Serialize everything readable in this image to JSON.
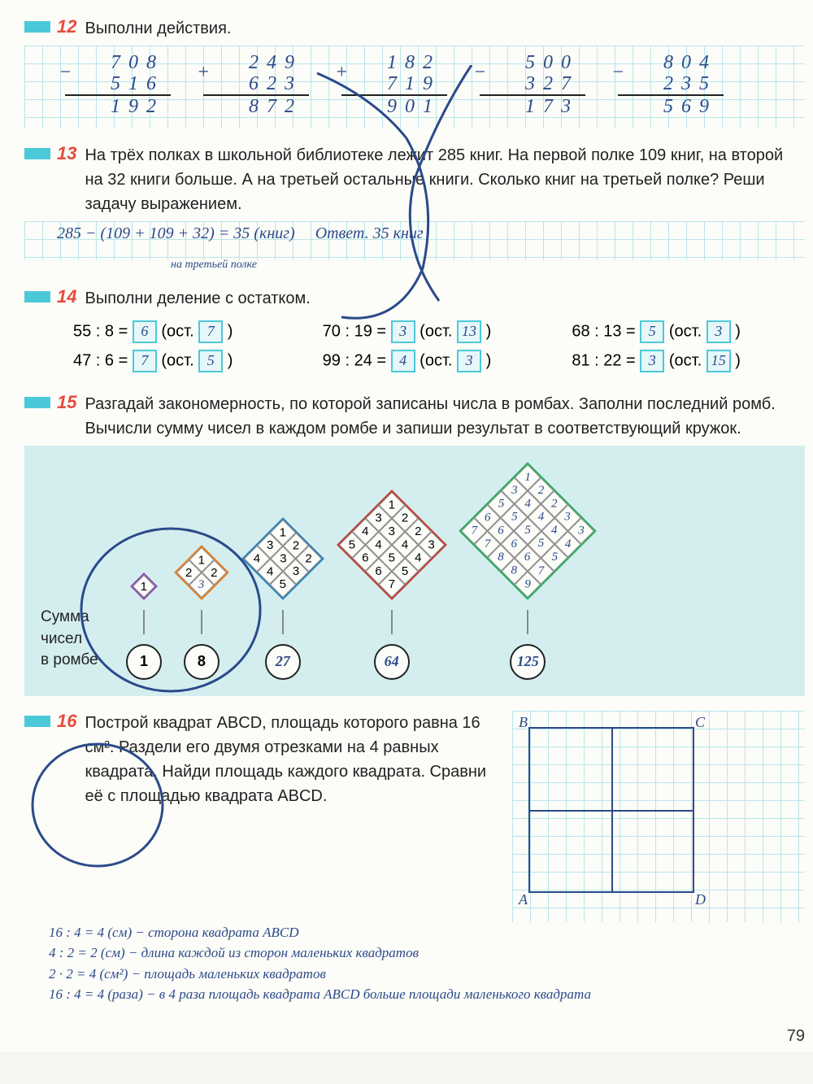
{
  "page_number": "79",
  "colors": {
    "accent_bar": "#4cc9d9",
    "ex_num": "#e74c3c",
    "handwriting": "#2b4a8a",
    "grid": "#b8e6ec",
    "panel_bg": "#d4eef0",
    "page_bg": "#fcfcf8"
  },
  "ex12": {
    "num": "12",
    "title": "Выполни действия.",
    "cols": [
      {
        "sign": "−",
        "a": "708",
        "b": "516",
        "r": "192"
      },
      {
        "sign": "+",
        "a": "249",
        "b": "623",
        "r": "872"
      },
      {
        "sign": "+",
        "a": "182",
        "b": "719",
        "r": "901"
      },
      {
        "sign": "−",
        "a": "500",
        "b": "327",
        "r": "173"
      },
      {
        "sign": "−",
        "a": "804",
        "b": "235",
        "r": "569"
      }
    ]
  },
  "ex13": {
    "num": "13",
    "text": "На трёх полках в школьной библиотеке лежит 285 книг. На первой полке 109 книг, на второй на 32 книги больше. А на третьей остальные книги. Сколько книг на третьей полке? Реши задачу выражением.",
    "answer_expr": "285 − (109 + 109 + 32) = 35 (книг)",
    "answer_note": "на третьей полке",
    "answer_word": "Ответ.",
    "answer_final": "35 книг"
  },
  "ex14": {
    "num": "14",
    "title": "Выполни деление с остатком.",
    "ost": "ост.",
    "items": [
      {
        "expr": "55 : 8 =",
        "q": "6",
        "r": "7"
      },
      {
        "expr": "70 : 19 =",
        "q": "3",
        "r": "13"
      },
      {
        "expr": "68 : 13 =",
        "q": "5",
        "r": "3"
      },
      {
        "expr": "47 : 6 =",
        "q": "7",
        "r": "5"
      },
      {
        "expr": "99 : 24 =",
        "q": "4",
        "r": "3"
      },
      {
        "expr": "81 : 22 =",
        "q": "3",
        "r": "15"
      }
    ]
  },
  "ex15": {
    "num": "15",
    "text": "Разгадай закономерность, по которой записаны числа в ромбах. Заполни последний ромб. Вычисли сумму чисел в каждом ромбе и запиши результат в соответствующий кружок.",
    "sum_label_l1": "Сумма",
    "sum_label_l2": "чисел",
    "sum_label_l3": "в ромбе",
    "rhombi": [
      {
        "size": 1,
        "border": "#8a4db0",
        "cells": [
          "1"
        ],
        "hw": [
          false
        ],
        "sum": "1"
      },
      {
        "size": 2,
        "border": "#e67e22",
        "cells": [
          "1",
          "2",
          "2",
          "3"
        ],
        "hw": [
          false,
          false,
          false,
          true
        ],
        "sum": "8"
      },
      {
        "size": 3,
        "border": "#2980b9",
        "cells": [
          "1",
          "2",
          "2",
          "3",
          "3",
          "3",
          "4",
          "4",
          "5"
        ],
        "hw": [
          false,
          false,
          false,
          false,
          false,
          false,
          false,
          false,
          false
        ],
        "sum": "27"
      },
      {
        "size": 4,
        "border": "#c0392b",
        "cells": [
          "1",
          "2",
          "2",
          "3",
          "3",
          "3",
          "4",
          "4",
          "4",
          "4",
          "5",
          "5",
          "5",
          "6",
          "6",
          "7"
        ],
        "hw": [
          false,
          false,
          false,
          false,
          false,
          false,
          false,
          false,
          false,
          false,
          false,
          false,
          false,
          false,
          false,
          false
        ],
        "sum": "64"
      },
      {
        "size": 5,
        "border": "#27ae60",
        "cells": [
          "1",
          "2",
          "2",
          "3",
          "3",
          "3",
          "4",
          "4",
          "4",
          "4",
          "5",
          "5",
          "5",
          "5",
          "5",
          "6",
          "6",
          "6",
          "6",
          "7",
          "7",
          "7",
          "8",
          "8",
          "9"
        ],
        "hw": [
          true,
          true,
          true,
          true,
          true,
          true,
          true,
          true,
          true,
          true,
          true,
          true,
          true,
          true,
          true,
          true,
          true,
          true,
          true,
          true,
          true,
          true,
          true,
          true,
          true
        ],
        "sum": "125"
      }
    ]
  },
  "ex16": {
    "num": "16",
    "text": "Построй квадрат ABCD, площадь которого равна 16 см². Раздели его двумя отрезками на 4 равных квадрата. Найди площадь каждого квадрата. Сравни её с площадью квадрата ABCD.",
    "labels": {
      "A": "A",
      "B": "B",
      "C": "C",
      "D": "D"
    },
    "answers": [
      "16 : 4 = 4 (см) − сторона квадрата ABCD",
      "4 : 2 = 2 (см) − длина каждой из сторон маленьких квадратов",
      "2 · 2 = 4 (см²) − площадь маленьких квадратов",
      "16 : 4 = 4 (раза) − в 4 раза площадь квадрата ABCD больше площади маленького квадрата"
    ]
  }
}
